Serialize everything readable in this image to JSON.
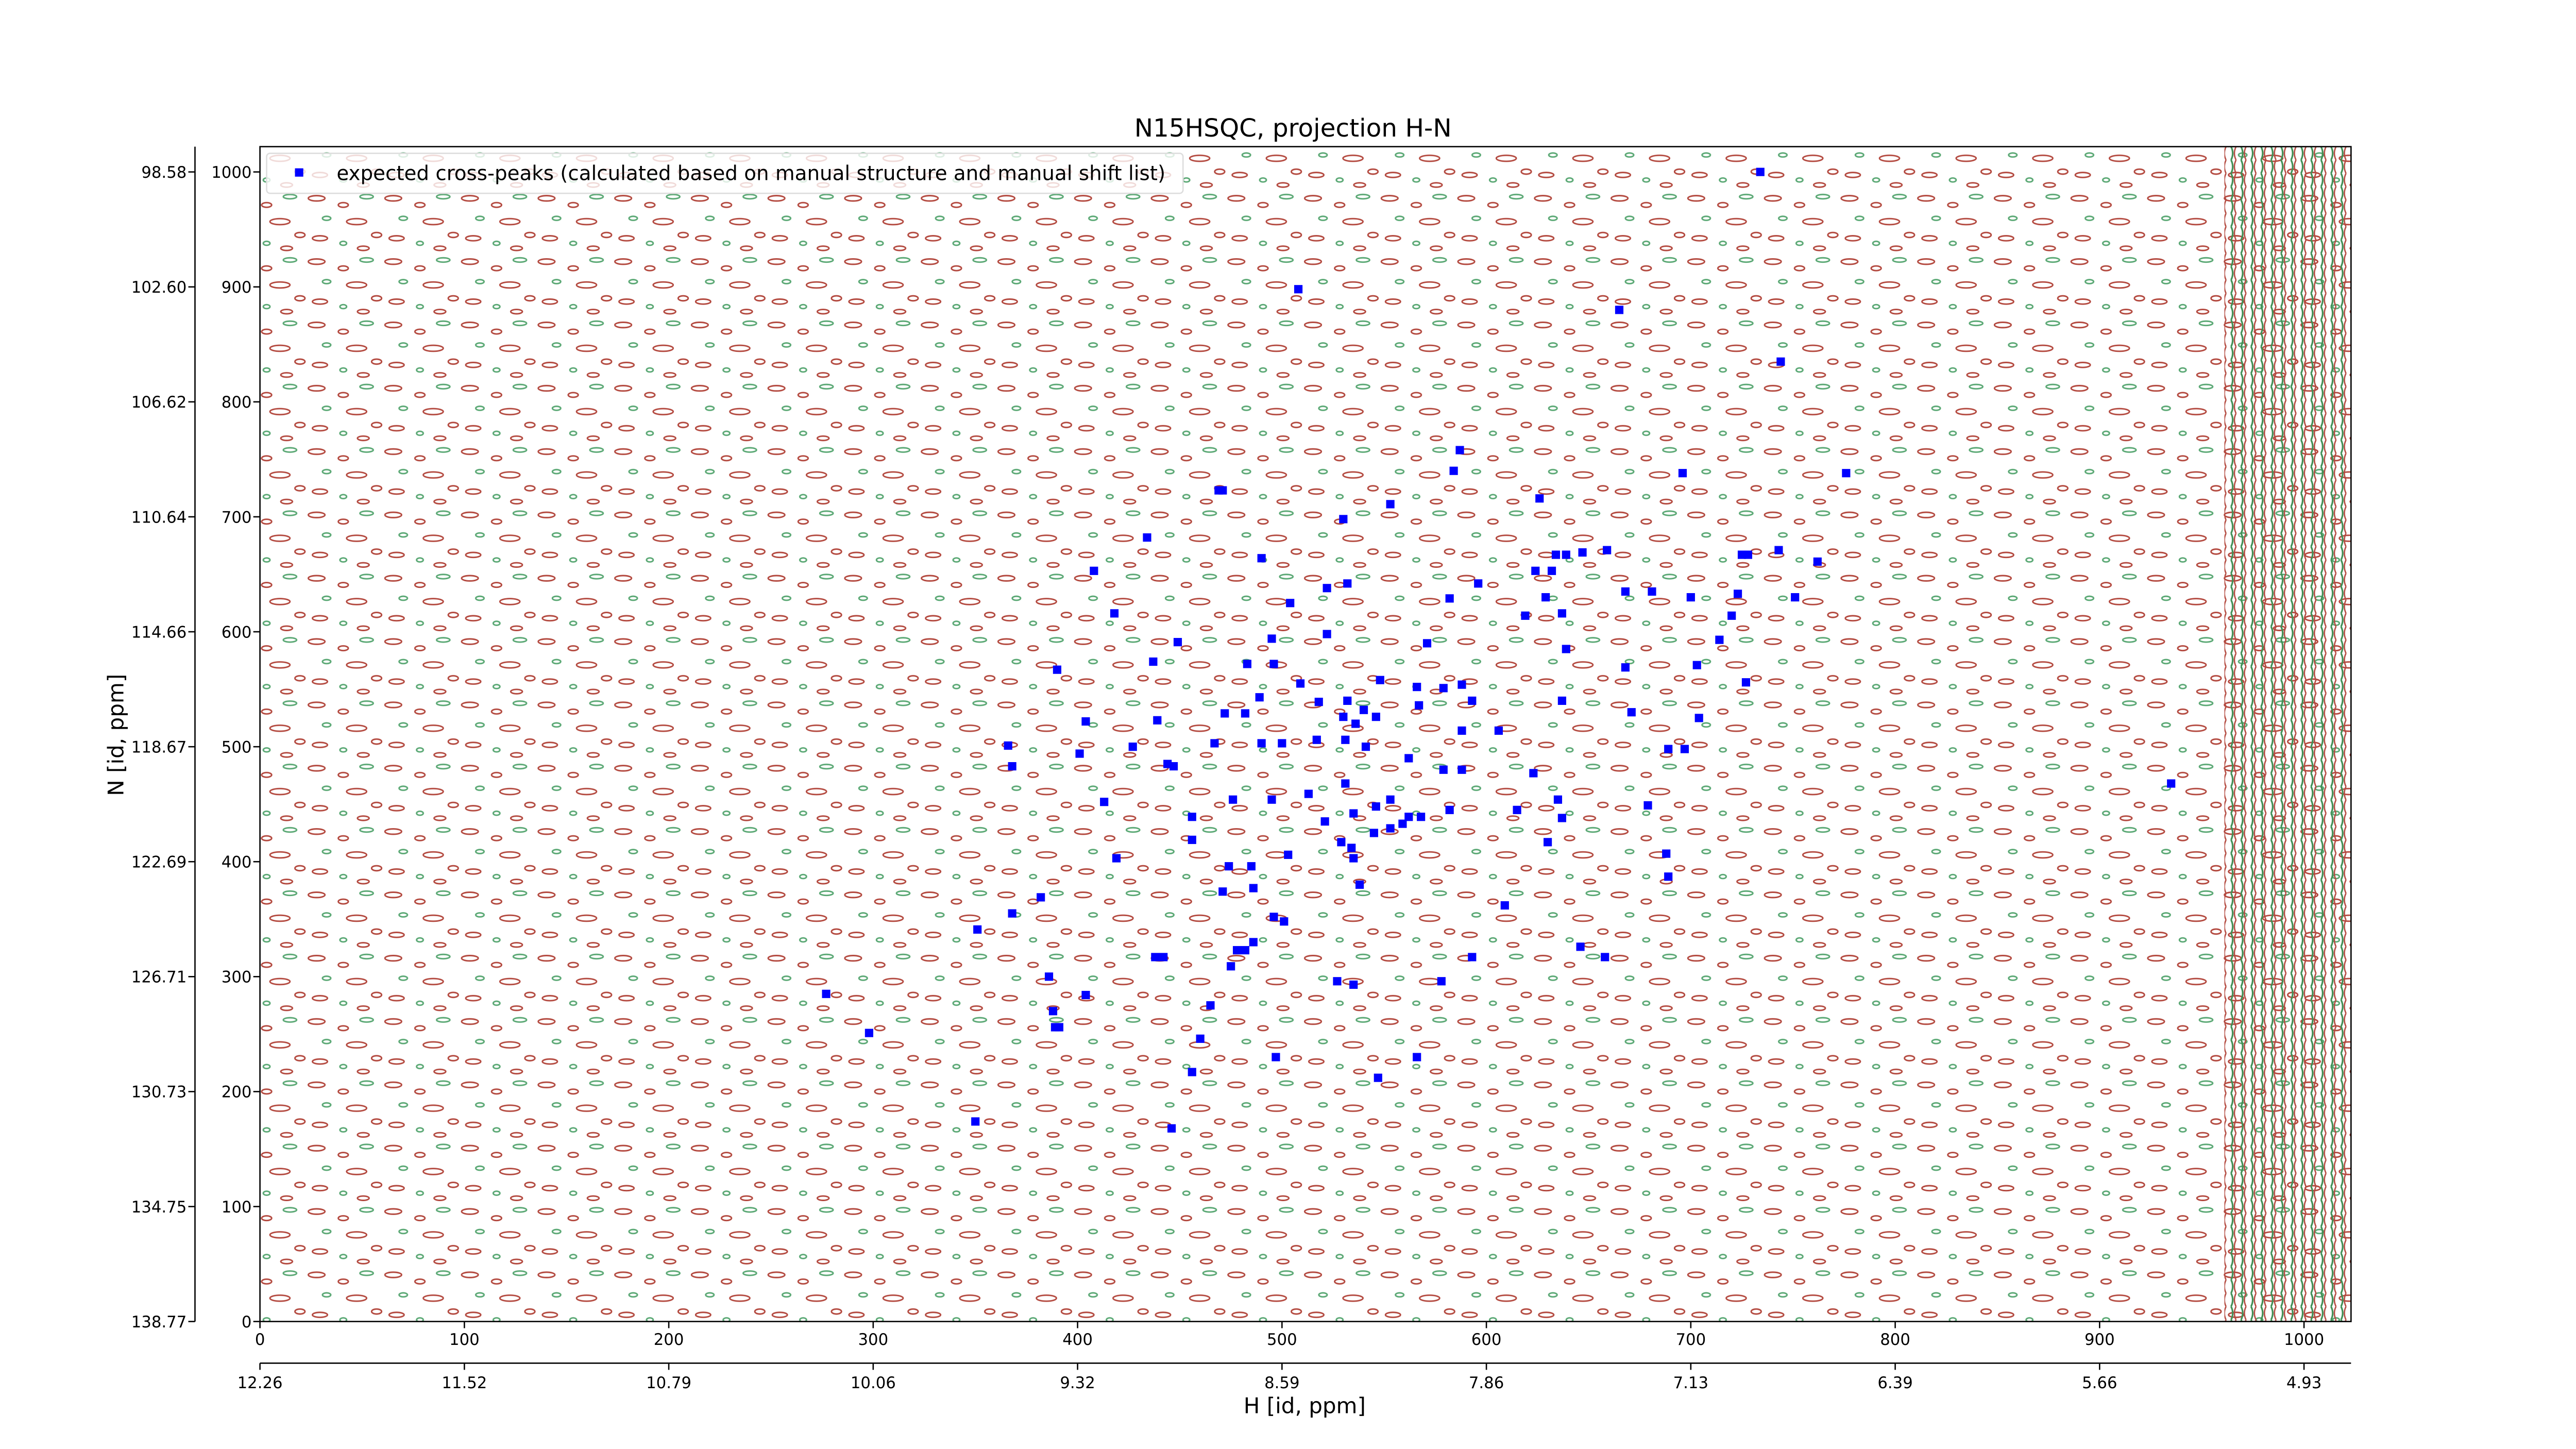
{
  "chart_data": {
    "type": "scatter",
    "title": "N15HSQC, projection H-N",
    "xlabel": "H [id, ppm]",
    "ylabel": "N [id, ppm]",
    "xlim": [
      0,
      1023
    ],
    "ylim": [
      0,
      1022
    ],
    "xticks": [
      0,
      100,
      200,
      300,
      400,
      500,
      600,
      700,
      800,
      900,
      1000
    ],
    "x2ticks": [
      {
        "value": 0,
        "label": "12.26"
      },
      {
        "value": 100,
        "label": "11.52"
      },
      {
        "value": 200,
        "label": "10.79"
      },
      {
        "value": 300,
        "label": "10.06"
      },
      {
        "value": 400,
        "label": "9.32"
      },
      {
        "value": 500,
        "label": "8.59"
      },
      {
        "value": 600,
        "label": "7.86"
      },
      {
        "value": 700,
        "label": "7.13"
      },
      {
        "value": 800,
        "label": "6.39"
      },
      {
        "value": 900,
        "label": "5.66"
      },
      {
        "value": 1000,
        "label": "4.93"
      }
    ],
    "yticks": [
      0,
      100,
      200,
      300,
      400,
      500,
      600,
      700,
      800,
      900,
      1000
    ],
    "y2ticks": [
      {
        "value": 0,
        "label": "138.77"
      },
      {
        "value": 100,
        "label": "134.75"
      },
      {
        "value": 200,
        "label": "130.73"
      },
      {
        "value": 300,
        "label": "126.71"
      },
      {
        "value": 400,
        "label": "122.69"
      },
      {
        "value": 500,
        "label": "118.67"
      },
      {
        "value": 600,
        "label": "114.66"
      },
      {
        "value": 700,
        "label": "110.64"
      },
      {
        "value": 800,
        "label": "106.62"
      },
      {
        "value": 900,
        "label": "102.60"
      },
      {
        "value": 1000,
        "label": "98.58"
      }
    ],
    "legend": "upper left",
    "series": [
      {
        "name": "expected cross-peaks (calculated based on manual structure and manual shift list)",
        "color": "#0000ff",
        "x": [
          734,
          508,
          665,
          744,
          587,
          584,
          696,
          776,
          469,
          471,
          553,
          626,
          530,
          434,
          408,
          490,
          634,
          639,
          647,
          659,
          725,
          728,
          743,
          762,
          532,
          522,
          504,
          582,
          596,
          624,
          632,
          668,
          681,
          700,
          751,
          723,
          418,
          619,
          629,
          637,
          720,
          495,
          449,
          522,
          571,
          639,
          714,
          437,
          390,
          483,
          496,
          668,
          703,
          727,
          509,
          548,
          566,
          579,
          588,
          532,
          540,
          518,
          489,
          567,
          593,
          530,
          546,
          536,
          404,
          439,
          472,
          482,
          588,
          606,
          637,
          671,
          704,
          366,
          368,
          401,
          427,
          444,
          447,
          467,
          490,
          500,
          517,
          531,
          541,
          562,
          579,
          588,
          623,
          689,
          697,
          935,
          413,
          476,
          495,
          513,
          531,
          535,
          546,
          553,
          559,
          562,
          568,
          545,
          553,
          521,
          534,
          582,
          615,
          635,
          637,
          679,
          456,
          419,
          474,
          485,
          503,
          535,
          456,
          529,
          630,
          688,
          689,
          382,
          368,
          351,
          471,
          486,
          496,
          501,
          538,
          609,
          486,
          482,
          478,
          475,
          438,
          442,
          646,
          658,
          386,
          404,
          388,
          391,
          389,
          465,
          527,
          535,
          578,
          593,
          277,
          298,
          460,
          497,
          566,
          456,
          547,
          350,
          446
        ],
        "y": [
          1000,
          898,
          880,
          835,
          758,
          740,
          738,
          738,
          723,
          723,
          711,
          716,
          698,
          682,
          653,
          664,
          667,
          667,
          669,
          671,
          667,
          667,
          671,
          661,
          642,
          638,
          625,
          629,
          642,
          653,
          653,
          635,
          635,
          630,
          630,
          633,
          616,
          614,
          630,
          616,
          614,
          594,
          591,
          598,
          590,
          585,
          593,
          574,
          567,
          572,
          572,
          569,
          571,
          556,
          555,
          558,
          552,
          551,
          554,
          540,
          532,
          539,
          543,
          536,
          540,
          526,
          526,
          520,
          522,
          523,
          529,
          529,
          514,
          514,
          540,
          530,
          525,
          501,
          483,
          494,
          500,
          485,
          483,
          503,
          503,
          503,
          506,
          506,
          500,
          490,
          480,
          480,
          477,
          498,
          498,
          468,
          452,
          454,
          454,
          459,
          468,
          442,
          448,
          454,
          433,
          439,
          439,
          425,
          429,
          435,
          412,
          445,
          445,
          454,
          438,
          449,
          439,
          403,
          396,
          396,
          406,
          403,
          419,
          417,
          417,
          407,
          387,
          369,
          355,
          341,
          374,
          377,
          352,
          348,
          380,
          362,
          330,
          323,
          323,
          309,
          317,
          317,
          326,
          317,
          300,
          284,
          270,
          256,
          256,
          275,
          296,
          293,
          296,
          317,
          285,
          251,
          246,
          230,
          230,
          217,
          212,
          174,
          168
        ]
      }
    ]
  }
}
